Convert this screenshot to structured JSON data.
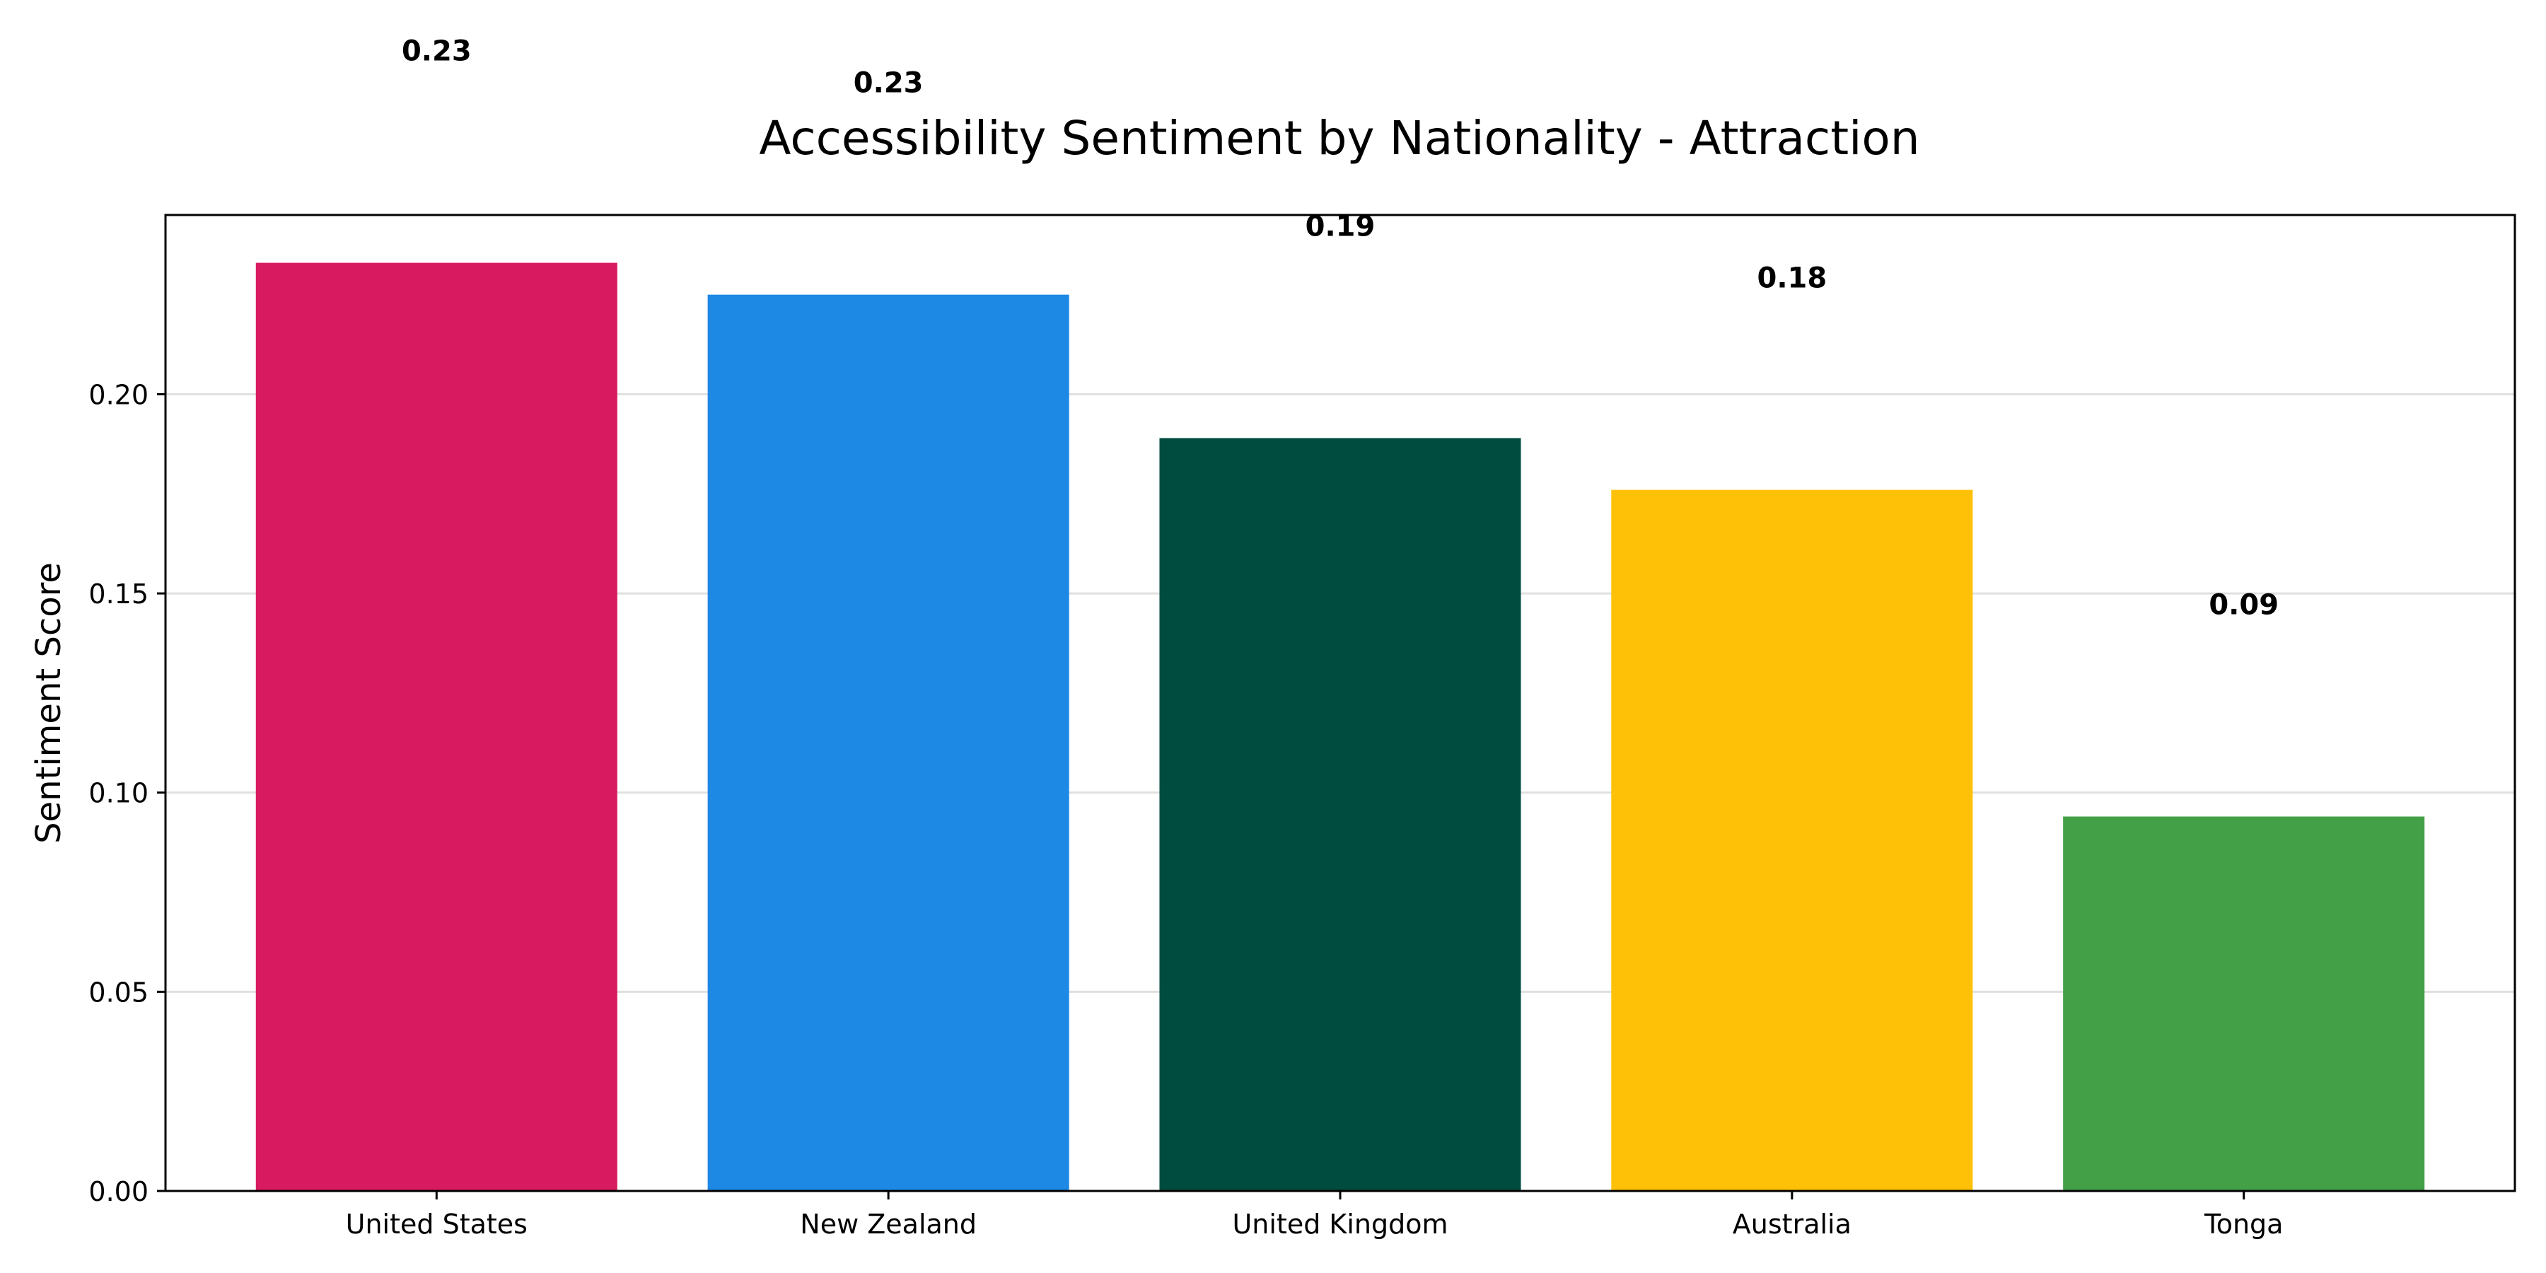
{
  "chart_data": {
    "type": "bar",
    "title": "Accessibility Sentiment by Nationality - Attraction",
    "xlabel": "",
    "ylabel": "Sentiment Score",
    "categories": [
      "United States",
      "New Zealand",
      "United Kingdom",
      "Australia",
      "Tonga"
    ],
    "values": [
      0.233,
      0.225,
      0.189,
      0.176,
      0.094
    ],
    "value_labels": [
      "0.23",
      "0.23",
      "0.19",
      "0.18",
      "0.09"
    ],
    "bar_colors": [
      "#d81b60",
      "#1e88e5",
      "#004d40",
      "#ffc107",
      "#43a047"
    ],
    "ylim": [
      0,
      0.245
    ],
    "yticks": [
      0.0,
      0.05,
      0.1,
      0.15,
      0.2
    ],
    "ytick_labels": [
      "0.00",
      "0.05",
      "0.10",
      "0.15",
      "0.20"
    ],
    "grid": "horizontal",
    "grid_color": "#e0e0e0"
  }
}
